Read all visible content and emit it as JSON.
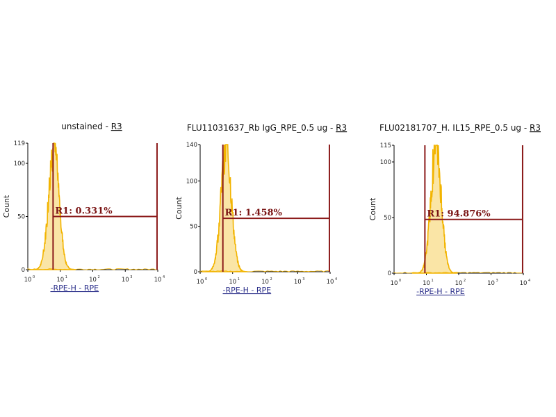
{
  "colors": {
    "histogram": "#f2b400",
    "histogram_dark": "#d99a00",
    "gate": "#8b1a1a",
    "gate_text": "#7a1414",
    "xaxis_label": "#2b2f8a"
  },
  "chart_data": [
    {
      "type": "histogram",
      "title": "unstained",
      "title_suffix": " - ",
      "title_link": "R3",
      "xlabel": "-RPE-H - RPE",
      "ylabel": "Count",
      "xscale": "log",
      "xlim": [
        1,
        10000
      ],
      "ylim": [
        0,
        119
      ],
      "yticks": [
        0,
        50,
        100,
        119
      ],
      "xtick_labels": [
        "10",
        "10",
        "10",
        "10",
        "10"
      ],
      "gate": {
        "name": "R1",
        "percent": "0.331%",
        "x_start": 6,
        "x_end": 9500,
        "label": "R1: 0.331%"
      },
      "peak": {
        "mode_log10": 0.8,
        "height": 119
      }
    },
    {
      "type": "histogram",
      "title": "FLU11031637_Rb IgG_RPE_0.5 ug",
      "title_suffix": " - ",
      "title_link": "R3",
      "xlabel": "-RPE-H - RPE",
      "ylabel": "Count",
      "xscale": "log",
      "xlim": [
        1,
        10000
      ],
      "ylim": [
        0,
        140
      ],
      "yticks": [
        0,
        50,
        100,
        140
      ],
      "xtick_labels": [
        "10",
        "10",
        "10",
        "10",
        "10"
      ],
      "gate": {
        "name": "R1",
        "percent": "1.458%",
        "x_start": 5,
        "x_end": 9500,
        "label": "R1: 1.458%"
      },
      "peak": {
        "mode_log10": 0.8,
        "height": 140
      }
    },
    {
      "type": "histogram",
      "title": "FLU02181707_H. IL15_RPE_0.5 ug",
      "title_suffix": " - ",
      "title_link": "R3",
      "xlabel": "-RPE-H - RPE",
      "ylabel": "Count",
      "xscale": "log",
      "xlim": [
        1,
        10000
      ],
      "ylim": [
        0,
        115
      ],
      "yticks": [
        0,
        50,
        100,
        115
      ],
      "xtick_labels": [
        "10",
        "10",
        "10",
        "10",
        "10"
      ],
      "gate": {
        "name": "R1",
        "percent": "94.876%",
        "x_start": 9,
        "x_end": 9500,
        "label": "R1: 94.876%"
      },
      "peak": {
        "mode_log10": 1.3,
        "height": 115
      }
    }
  ]
}
